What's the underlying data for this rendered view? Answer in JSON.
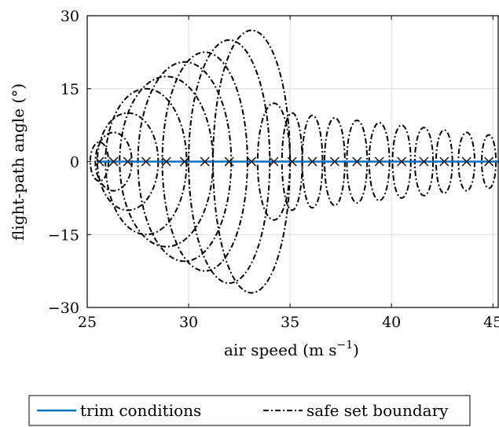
{
  "chart_data": {
    "type": "line",
    "xlabel": "air speed (m s",
    "xlabel_exp": "−1",
    "xlabel_close": ")",
    "ylabel": "flight-path angle (°)",
    "xlim": [
      25,
      45.3
    ],
    "ylim": [
      -30,
      30
    ],
    "xticks": [
      25,
      30,
      35,
      40,
      45
    ],
    "yticks": [
      -30,
      -15,
      0,
      15,
      30
    ],
    "ytick_labels": [
      "−30",
      "−15",
      "0",
      "15",
      "30"
    ],
    "grid": true,
    "legend_position": "bottom-outside",
    "series": [
      {
        "name": "trim conditions",
        "style": "solid",
        "color": "#0072BD",
        "x": [
          25.5,
          45.3
        ],
        "y": [
          0,
          0
        ]
      },
      {
        "name": "safe set boundary",
        "style": "dash-dot",
        "color": "#000000",
        "ellipses": [
          {
            "cx": 25.6,
            "cy": 0,
            "rx": 0.45,
            "ry": 4.0
          },
          {
            "cx": 26.3,
            "cy": 0,
            "rx": 0.9,
            "ry": 6.0
          },
          {
            "cx": 27.0,
            "cy": 0,
            "rx": 1.5,
            "ry": 10.0
          },
          {
            "cx": 27.9,
            "cy": 0,
            "rx": 2.0,
            "ry": 15.0
          },
          {
            "cx": 28.9,
            "cy": 0,
            "rx": 2.3,
            "ry": 17.5
          },
          {
            "cx": 29.8,
            "cy": 0,
            "rx": 2.3,
            "ry": 20.5
          },
          {
            "cx": 30.8,
            "cy": 0,
            "rx": 2.1,
            "ry": 22.5
          },
          {
            "cx": 32.0,
            "cy": 0,
            "rx": 2.0,
            "ry": 25.0
          },
          {
            "cx": 33.1,
            "cy": 0,
            "rx": 1.9,
            "ry": 27.0
          },
          {
            "cx": 34.2,
            "cy": 0,
            "rx": 0.8,
            "ry": 12.0
          },
          {
            "cx": 35.1,
            "cy": 0,
            "rx": 0.5,
            "ry": 10.0
          },
          {
            "cx": 36.1,
            "cy": 0,
            "rx": 0.5,
            "ry": 9.5
          },
          {
            "cx": 37.2,
            "cy": 0,
            "rx": 0.5,
            "ry": 9.0
          },
          {
            "cx": 38.3,
            "cy": 0,
            "rx": 0.5,
            "ry": 8.5
          },
          {
            "cx": 39.4,
            "cy": 0,
            "rx": 0.5,
            "ry": 8.0
          },
          {
            "cx": 40.5,
            "cy": 0,
            "rx": 0.45,
            "ry": 7.5
          },
          {
            "cx": 41.6,
            "cy": 0,
            "rx": 0.45,
            "ry": 7.0
          },
          {
            "cx": 42.6,
            "cy": 0,
            "rx": 0.4,
            "ry": 6.5
          },
          {
            "cx": 43.7,
            "cy": 0,
            "rx": 0.4,
            "ry": 6.0
          },
          {
            "cx": 44.8,
            "cy": 0,
            "rx": 0.35,
            "ry": 5.5
          }
        ]
      }
    ],
    "trim_points": {
      "marker": "x",
      "x": [
        25.6,
        26.3,
        27.0,
        27.9,
        28.9,
        29.8,
        30.8,
        32.0,
        33.1,
        34.2,
        35.1,
        36.1,
        37.2,
        38.3,
        39.4,
        40.5,
        41.6,
        42.6,
        43.7,
        44.8
      ],
      "y": [
        0,
        0,
        0,
        0,
        0,
        0,
        0,
        0,
        0,
        0,
        0,
        0,
        0,
        0,
        0,
        0,
        0,
        0,
        0,
        0
      ]
    }
  }
}
